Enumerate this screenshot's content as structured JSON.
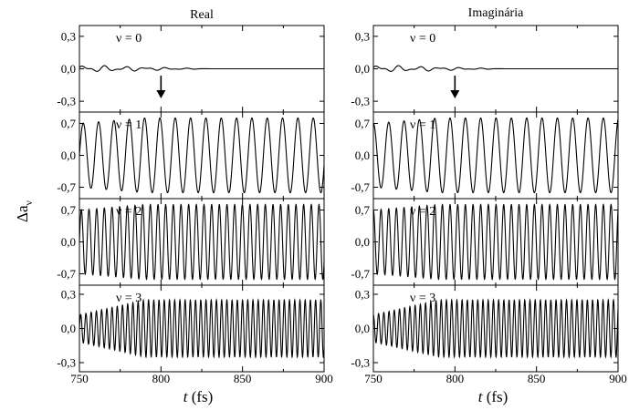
{
  "figure": {
    "ylabel_symbol": "Δa",
    "ylabel_subscript": "ν",
    "xlabel_var": "t",
    "xlabel_unit": " (fs)"
  },
  "chart_data": [
    {
      "type": "line",
      "title": "Real",
      "xlim": [
        750,
        900
      ],
      "xticks": [
        "750",
        "800",
        "850",
        "900"
      ],
      "annotation": {
        "type": "arrow-down",
        "x": 800,
        "panel": "ν = 0"
      },
      "panels": [
        {
          "label": "ν = 0",
          "ylim": [
            -0.4,
            0.4
          ],
          "yticks": [
            "-0,3",
            "0,0",
            "0,3"
          ],
          "amplitude": [
            0.03,
            0.02,
            0.0
          ],
          "period": [
            12,
            8
          ],
          "note": "small oscillation decaying to zero by ~830 fs"
        },
        {
          "label": "ν = 1",
          "ylim": [
            -0.95,
            0.95
          ],
          "yticks": [
            "-0,7",
            "0,0",
            "0,7"
          ],
          "amplitude": [
            0.7,
            0.82
          ],
          "period": 9.4
        },
        {
          "label": "ν = 2",
          "ylim": [
            -0.95,
            0.95
          ],
          "yticks": [
            "-0,7",
            "0,0",
            "0,7"
          ],
          "amplitude": [
            0.7,
            0.82
          ],
          "period": 4.7
        },
        {
          "label": "ν = 3",
          "ylim": [
            -0.38,
            0.38
          ],
          "yticks": [
            "-0,3",
            "0,0",
            "0,3"
          ],
          "amplitude": [
            0.12,
            0.25
          ],
          "period": 3.2
        }
      ]
    },
    {
      "type": "line",
      "title": "Imaginária",
      "xlim": [
        750,
        900
      ],
      "xticks": [
        "750",
        "800",
        "850",
        "900"
      ],
      "annotation": {
        "type": "arrow-down",
        "x": 800,
        "panel": "ν = 0"
      },
      "panels": [
        {
          "label": "ν = 0",
          "ylim": [
            -0.4,
            0.4
          ],
          "yticks": [
            "-0,3",
            "0,0",
            "0,3"
          ],
          "amplitude": [
            0.03,
            0.02,
            0.0
          ],
          "period": [
            12,
            8
          ],
          "note": "small oscillation decaying to zero by ~830 fs"
        },
        {
          "label": "ν = 1",
          "ylim": [
            -0.95,
            0.95
          ],
          "yticks": [
            "-0,7",
            "0,0",
            "0,7"
          ],
          "amplitude": [
            0.7,
            0.82
          ],
          "period": 9.4
        },
        {
          "label": "ν = 2",
          "ylim": [
            -0.95,
            0.95
          ],
          "yticks": [
            "-0,7",
            "0,0",
            "0,7"
          ],
          "amplitude": [
            0.7,
            0.82
          ],
          "period": 4.7
        },
        {
          "label": "ν = 3",
          "ylim": [
            -0.38,
            0.38
          ],
          "yticks": [
            "-0,3",
            "0,0",
            "0,3"
          ],
          "amplitude": [
            0.12,
            0.25
          ],
          "period": 3.2
        }
      ]
    }
  ]
}
